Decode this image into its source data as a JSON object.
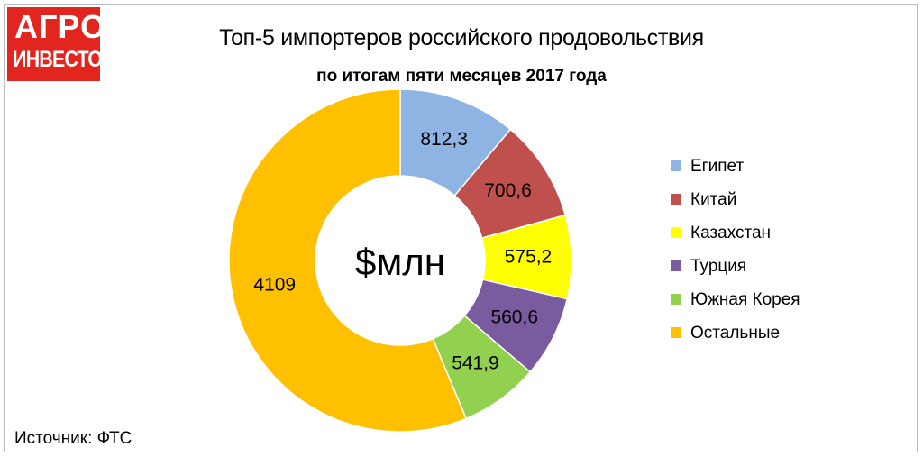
{
  "logo": {
    "line1": "АГРО",
    "line2": "ИНВЕСТОР"
  },
  "chart_data": {
    "type": "pie",
    "variant": "donut",
    "title": "Топ-5 импортеров российского продовольствия",
    "subtitle": "по итогам пяти месяцев 2017 года",
    "center_label": "$млн",
    "slices": [
      {
        "label": "Египет",
        "value": 812.3,
        "display": "812,3",
        "color": "#8eb4e3"
      },
      {
        "label": "Китай",
        "value": 700.6,
        "display": "700,6",
        "color": "#c0504d"
      },
      {
        "label": "Казахстан",
        "value": 575.2,
        "display": "575,2",
        "color": "#ffff00"
      },
      {
        "label": "Турция",
        "value": 560.6,
        "display": "560,6",
        "color": "#7b5b9f"
      },
      {
        "label": "Южная Корея",
        "value": 541.9,
        "display": "541,9",
        "color": "#92d050"
      },
      {
        "label": "Остальные",
        "value": 4109,
        "display": "4109",
        "color": "#ffc000"
      }
    ],
    "legend_position": "right"
  },
  "source": "Источник: ФТС"
}
